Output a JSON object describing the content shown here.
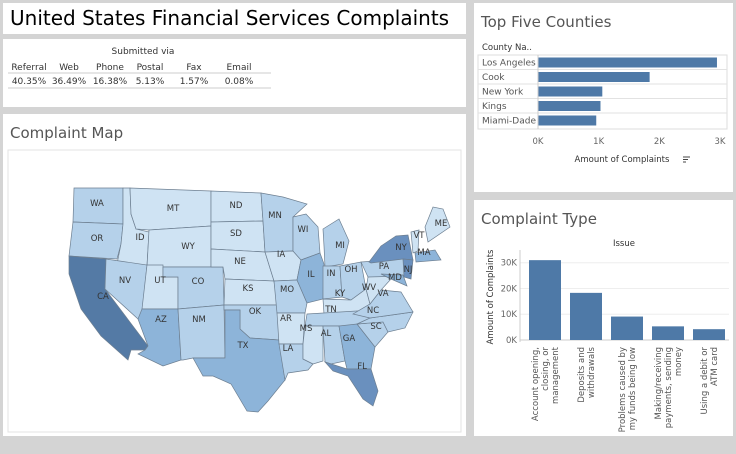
{
  "title": "United States Financial Services Complaints",
  "summary": {
    "header": "Submitted via",
    "channels": [
      {
        "label": "Referral",
        "value": "40.35%"
      },
      {
        "label": "Web",
        "value": "36.49%"
      },
      {
        "label": "Phone",
        "value": "16.38%"
      },
      {
        "label": "Postal",
        "value": "5.13%"
      },
      {
        "label": "Fax",
        "value": "1.57%"
      },
      {
        "label": "Email",
        "value": "0.08%"
      }
    ]
  },
  "map": {
    "title": "Complaint Map",
    "colors": {
      "lightest": "#cfe3f3",
      "light": "#b5d1ea",
      "mid": "#8db4d9",
      "dark": "#6a90be",
      "darkest": "#547aa5",
      "border": "#6d7f91"
    },
    "states": [
      {
        "code": "WA",
        "shade": "light"
      },
      {
        "code": "OR",
        "shade": "light"
      },
      {
        "code": "CA",
        "shade": "darkest"
      },
      {
        "code": "ID",
        "shade": "lightest"
      },
      {
        "code": "NV",
        "shade": "light"
      },
      {
        "code": "MT",
        "shade": "lightest"
      },
      {
        "code": "WY",
        "shade": "lightest"
      },
      {
        "code": "UT",
        "shade": "lightest"
      },
      {
        "code": "AZ",
        "shade": "mid"
      },
      {
        "code": "CO",
        "shade": "light"
      },
      {
        "code": "NM",
        "shade": "light"
      },
      {
        "code": "ND",
        "shade": "lightest"
      },
      {
        "code": "SD",
        "shade": "lightest"
      },
      {
        "code": "NE",
        "shade": "lightest"
      },
      {
        "code": "KS",
        "shade": "lightest"
      },
      {
        "code": "OK",
        "shade": "light"
      },
      {
        "code": "TX",
        "shade": "mid"
      },
      {
        "code": "MN",
        "shade": "light"
      },
      {
        "code": "IA",
        "shade": "lightest"
      },
      {
        "code": "MO",
        "shade": "light"
      },
      {
        "code": "AR",
        "shade": "lightest"
      },
      {
        "code": "LA",
        "shade": "light"
      },
      {
        "code": "WI",
        "shade": "light"
      },
      {
        "code": "IL",
        "shade": "mid"
      },
      {
        "code": "MI",
        "shade": "light"
      },
      {
        "code": "IN",
        "shade": "light"
      },
      {
        "code": "OH",
        "shade": "light"
      },
      {
        "code": "KY",
        "shade": "lightest"
      },
      {
        "code": "TN",
        "shade": "light"
      },
      {
        "code": "MS",
        "shade": "lightest"
      },
      {
        "code": "AL",
        "shade": "light"
      },
      {
        "code": "GA",
        "shade": "mid"
      },
      {
        "code": "FL",
        "shade": "dark"
      },
      {
        "code": "SC",
        "shade": "light"
      },
      {
        "code": "NC",
        "shade": "light"
      },
      {
        "code": "VA",
        "shade": "light"
      },
      {
        "code": "WV",
        "shade": "lightest"
      },
      {
        "code": "PA",
        "shade": "light"
      },
      {
        "code": "NY",
        "shade": "dark"
      },
      {
        "code": "MD",
        "shade": "mid"
      },
      {
        "code": "NJ",
        "shade": "dark"
      },
      {
        "code": "VT",
        "shade": "lightest"
      },
      {
        "code": "MA",
        "shade": "mid"
      },
      {
        "code": "ME",
        "shade": "lightest"
      }
    ]
  },
  "counties": {
    "title": "Top Five Counties",
    "column_header": "County Na..",
    "axis_label": "Amount of Complaints",
    "sort_icon": "sort-descending-icon",
    "bar_color": "#4e79a7",
    "chart_data": {
      "type": "bar",
      "orientation": "horizontal",
      "categories": [
        "Los Angeles",
        "Cook",
        "New York",
        "Kings",
        "Miami-Dade"
      ],
      "values": [
        2950,
        1840,
        1060,
        1030,
        960
      ],
      "xlim": [
        0,
        3000
      ],
      "ticks": [
        0,
        1000,
        2000,
        3000
      ],
      "tick_labels": [
        "0K",
        "1K",
        "2K",
        "3K"
      ],
      "xlabel": "Amount of Complaints"
    }
  },
  "types": {
    "title": "Complaint Type",
    "bar_color": "#4e79a7",
    "chart_data": {
      "type": "bar",
      "title": "Issue",
      "ylabel": "Amount of Complaints",
      "categories": [
        [
          "Account opening,",
          "closing, or",
          "management"
        ],
        [
          "Deposits and",
          "withdrawals"
        ],
        [
          "Problems caused by",
          "my funds being low"
        ],
        [
          "Making/receiving",
          "payments, sending",
          "money"
        ],
        [
          "Using a debit or",
          "ATM card"
        ]
      ],
      "values": [
        31000,
        18300,
        9100,
        5300,
        4200
      ],
      "ylim": [
        0,
        33000
      ],
      "ticks": [
        0,
        10000,
        20000,
        30000
      ],
      "tick_labels": [
        "0K",
        "10K",
        "20K",
        "30K"
      ]
    }
  }
}
